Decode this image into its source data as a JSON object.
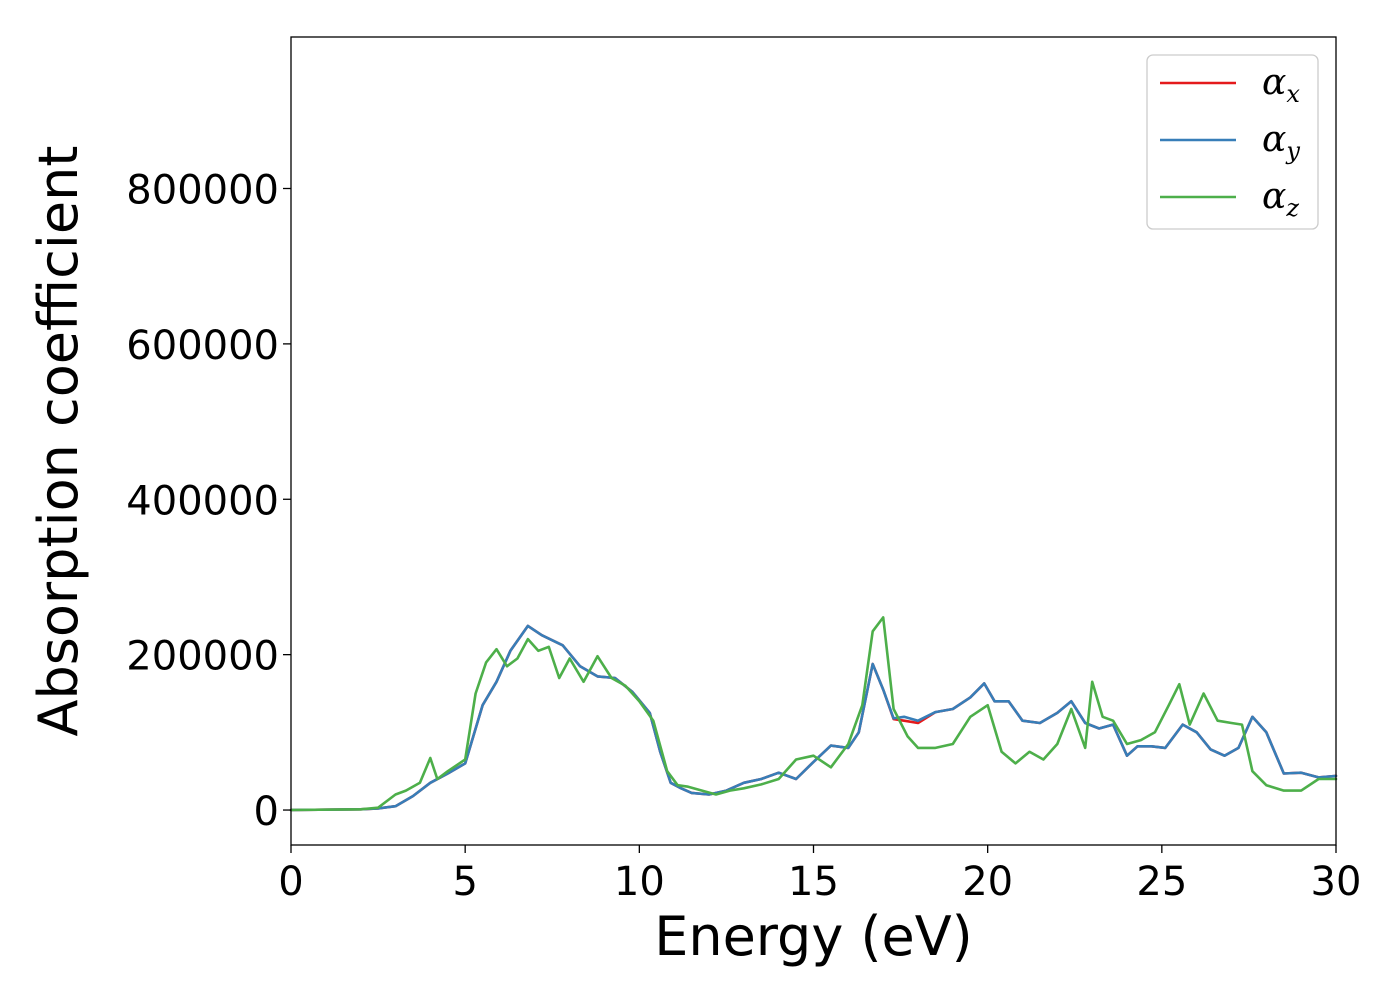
{
  "chart_data": {
    "type": "line",
    "title": "",
    "xlabel": "Energy (eV)",
    "ylabel": "Absorption coefficient",
    "xlim": [
      0,
      30
    ],
    "ylim": [
      -45000,
      995000
    ],
    "xticks": [
      0,
      5,
      10,
      15,
      20,
      25,
      30
    ],
    "yticks": [
      0,
      200000,
      400000,
      600000,
      800000
    ],
    "grid": false,
    "legend_position": "top-right",
    "series": [
      {
        "name": "α",
        "subscript": "x",
        "color": "#e41a1c",
        "x": [
          0,
          2,
          2.5,
          3.0,
          3.5,
          4.0,
          4.5,
          5.0,
          5.5,
          5.9,
          6.3,
          6.8,
          7.2,
          7.8,
          8.3,
          8.8,
          9.3,
          9.8,
          10.3,
          10.6,
          10.9,
          11.2,
          11.5,
          12.0,
          12.5,
          13.0,
          13.5,
          14.0,
          14.5,
          15.0,
          15.5,
          16.0,
          16.3,
          16.7,
          17.0,
          17.3,
          17.6,
          18.0,
          18.5,
          19.0,
          19.5,
          19.9,
          20.2,
          20.6,
          21.0,
          21.5,
          22.0,
          22.4,
          22.8,
          23.2,
          23.6,
          24.0,
          24.3,
          24.7,
          25.1,
          25.6,
          26.0,
          26.4,
          26.8,
          27.2,
          27.6,
          28.0,
          28.5,
          29.0,
          29.5,
          30.0
        ],
        "y": [
          0,
          1000,
          2000,
          5000,
          18000,
          35000,
          47000,
          60000,
          135000,
          165000,
          205000,
          237000,
          225000,
          212000,
          185000,
          172000,
          170000,
          152000,
          125000,
          75000,
          35000,
          28000,
          22000,
          20000,
          25000,
          35000,
          40000,
          48000,
          40000,
          62000,
          83000,
          80000,
          100000,
          188000,
          155000,
          117000,
          115000,
          112000,
          126000,
          130000,
          145000,
          163000,
          140000,
          140000,
          115000,
          112000,
          125000,
          140000,
          112000,
          105000,
          110000,
          70000,
          82000,
          82000,
          80000,
          110000,
          100000,
          78000,
          70000,
          80000,
          120000,
          100000,
          47000,
          48000,
          42000,
          44000
        ]
      },
      {
        "name": "α",
        "subscript": "y",
        "color": "#377eb8",
        "x": [
          0,
          2,
          2.5,
          3.0,
          3.5,
          4.0,
          4.5,
          5.0,
          5.5,
          5.9,
          6.3,
          6.8,
          7.2,
          7.8,
          8.3,
          8.8,
          9.3,
          9.8,
          10.3,
          10.6,
          10.9,
          11.2,
          11.5,
          12.0,
          12.5,
          13.0,
          13.5,
          14.0,
          14.5,
          15.0,
          15.5,
          16.0,
          16.3,
          16.7,
          17.0,
          17.3,
          17.6,
          18.0,
          18.5,
          19.0,
          19.5,
          19.9,
          20.2,
          20.6,
          21.0,
          21.5,
          22.0,
          22.4,
          22.8,
          23.2,
          23.6,
          24.0,
          24.3,
          24.7,
          25.1,
          25.6,
          26.0,
          26.4,
          26.8,
          27.2,
          27.6,
          28.0,
          28.5,
          29.0,
          29.5,
          30.0
        ],
        "y": [
          0,
          1000,
          2000,
          5000,
          18000,
          35000,
          47000,
          60000,
          135000,
          165000,
          205000,
          237000,
          225000,
          212000,
          185000,
          172000,
          170000,
          152000,
          125000,
          75000,
          35000,
          28000,
          22000,
          20000,
          25000,
          35000,
          40000,
          48000,
          40000,
          62000,
          83000,
          80000,
          100000,
          188000,
          155000,
          118000,
          120000,
          115000,
          126000,
          130000,
          145000,
          163000,
          140000,
          140000,
          115000,
          112000,
          125000,
          140000,
          112000,
          105000,
          110000,
          70000,
          82000,
          82000,
          80000,
          110000,
          100000,
          78000,
          70000,
          80000,
          120000,
          100000,
          47000,
          48000,
          42000,
          44000
        ]
      },
      {
        "name": "α",
        "subscript": "z",
        "color": "#4daf4a",
        "x": [
          0,
          2,
          2.5,
          3.0,
          3.3,
          3.7,
          4.0,
          4.2,
          4.5,
          5.0,
          5.3,
          5.6,
          5.9,
          6.2,
          6.5,
          6.8,
          7.1,
          7.4,
          7.7,
          8.0,
          8.4,
          8.8,
          9.2,
          9.6,
          10.0,
          10.4,
          10.8,
          11.1,
          11.4,
          11.8,
          12.2,
          12.6,
          13.0,
          13.5,
          14.0,
          14.5,
          15.0,
          15.5,
          16.0,
          16.4,
          16.7,
          17.0,
          17.3,
          17.7,
          18.0,
          18.5,
          19.0,
          19.5,
          20.0,
          20.4,
          20.8,
          21.2,
          21.6,
          22.0,
          22.4,
          22.8,
          23.0,
          23.3,
          23.6,
          24.0,
          24.4,
          24.8,
          25.2,
          25.5,
          25.8,
          26.2,
          26.6,
          27.0,
          27.3,
          27.6,
          28.0,
          28.5,
          29.0,
          29.5,
          30.0
        ],
        "y": [
          0,
          1000,
          3000,
          20000,
          25000,
          35000,
          67000,
          40000,
          50000,
          65000,
          150000,
          190000,
          207000,
          185000,
          195000,
          220000,
          205000,
          210000,
          170000,
          195000,
          165000,
          198000,
          170000,
          160000,
          140000,
          115000,
          50000,
          32000,
          30000,
          25000,
          20000,
          25000,
          28000,
          33000,
          40000,
          65000,
          70000,
          55000,
          85000,
          135000,
          230000,
          248000,
          130000,
          95000,
          80000,
          80000,
          85000,
          120000,
          135000,
          75000,
          60000,
          75000,
          65000,
          85000,
          130000,
          80000,
          165000,
          120000,
          115000,
          85000,
          90000,
          100000,
          135000,
          162000,
          110000,
          150000,
          115000,
          112000,
          110000,
          50000,
          32000,
          25000,
          25000,
          40000,
          40000
        ]
      }
    ]
  }
}
